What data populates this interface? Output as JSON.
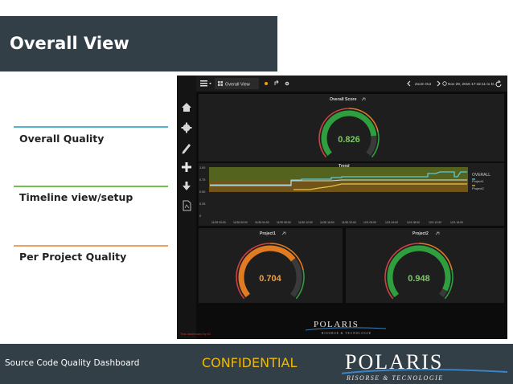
{
  "slide": {
    "title": "Overall View",
    "menu": [
      {
        "label": "Overall Quality",
        "color": "#4fb6c9"
      },
      {
        "label": "Timeline view/setup",
        "color": "#6cc24a"
      },
      {
        "label": "Per Project Quality",
        "color": "#f0a060"
      }
    ],
    "footer_left": "Source Code Quality Dashboard",
    "footer_center": "CONFIDENTIAL",
    "footer_logo_main": "POLARIS",
    "footer_logo_sub": "RISORSE  &  TECNOLOGIE"
  },
  "dashboard": {
    "topbar": {
      "title": "Overall View",
      "zoom_out": "Zoom Out",
      "time_range": "Nov 29, 2016 17:42:11 to D..."
    },
    "side_icons": [
      "home-icon",
      "gear-icon",
      "pencil-icon",
      "plus-icon",
      "download-icon",
      "document-icon"
    ],
    "overall_panel": {
      "title": "Overall Score",
      "value": "0.826",
      "fraction": 0.826
    },
    "trend_panel": {
      "title": "Trend",
      "y_ticks": [
        "1.00",
        "0.75",
        "0.50",
        "0.25",
        "0"
      ],
      "x_ticks": [
        "11/29 20:00",
        "11/30 00:00",
        "11/30 04:00",
        "11/30 08:00",
        "11/30 12:00",
        "11/30 16:00",
        "11/30 20:00",
        "12/1 00:00",
        "12/1 04:00",
        "12/1 08:00",
        "12/1 12:00",
        "12/1 16:00"
      ],
      "legend": [
        "OVERALL",
        "Project1",
        "Project2"
      ]
    },
    "project1_panel": {
      "title": "Project1",
      "value": "0.704",
      "fraction": 0.704
    },
    "project2_panel": {
      "title": "Project2",
      "value": "0.948",
      "fraction": 0.948
    },
    "footer_note": "This dashboard by ID",
    "logo_main": "POLARIS",
    "logo_sub": "RISORSE  &  TECNOLOGIE"
  },
  "colors": {
    "slide_dark": "#333f47",
    "gauge_green": "#2f9e3e",
    "gauge_orange": "#e07b22",
    "gauge_red": "#d04040",
    "value_green": "#7ec86a",
    "value_orange": "#f0a040",
    "overall_line": "#5ec7d6",
    "project1_line": "#e5c340",
    "project2_line": "#f0f0f0"
  }
}
